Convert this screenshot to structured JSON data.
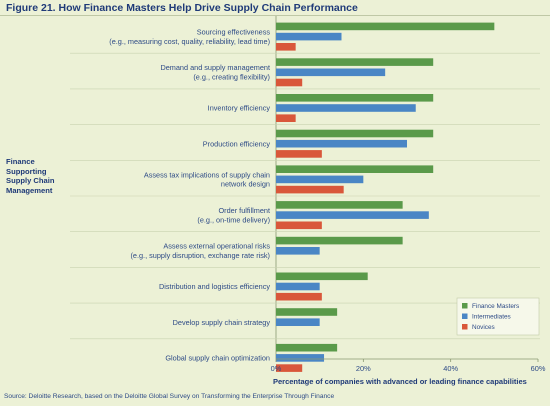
{
  "figure": {
    "title": "Figure 21. How Finance Masters Help Drive Supply Chain Performance",
    "source": "Source: Deloitte Research, based on the Deloitte Global Survey on Transforming the Enterprise Through Finance"
  },
  "chart_data": {
    "type": "bar",
    "orientation": "horizontal",
    "group_label": "Finance Supporting Supply Chain Management",
    "xlabel": "Percentage of companies with advanced or leading finance capabilities",
    "xlim": [
      0,
      60
    ],
    "xticks": [
      "0%",
      "20%",
      "40%",
      "60%"
    ],
    "grid": false,
    "legend_position": "bottom-right",
    "categories": [
      [
        "Sourcing effectiveness",
        "(e.g., measuring cost, quality, reliability, lead time)"
      ],
      [
        "Demand and supply management",
        "(e.g., creating flexibility)"
      ],
      [
        "Inventory efficiency"
      ],
      [
        "Production efficiency"
      ],
      [
        "Assess tax implications of supply chain",
        "network design"
      ],
      [
        "Order fulfillment",
        "(e.g., on-time delivery)"
      ],
      [
        "Assess external operational risks",
        "(e.g., supply disruption, exchange rate risk)"
      ],
      [
        "Distribution and logistics efficiency"
      ],
      [
        "Develop supply chain strategy"
      ],
      [
        "Global supply chain optimization"
      ]
    ],
    "series": [
      {
        "name": "Finance Masters",
        "color": "#5a9a4a",
        "values": [
          50,
          36,
          36,
          36,
          36,
          29,
          29,
          21,
          14,
          14
        ]
      },
      {
        "name": "Intermediates",
        "color": "#4a86c5",
        "values": [
          15,
          25,
          32,
          30,
          20,
          35,
          10,
          10,
          10,
          11
        ]
      },
      {
        "name": "Novices",
        "color": "#d9573a",
        "values": [
          4.5,
          6,
          4.5,
          10.5,
          15.5,
          10.5,
          0,
          10.5,
          0,
          6
        ]
      }
    ]
  }
}
